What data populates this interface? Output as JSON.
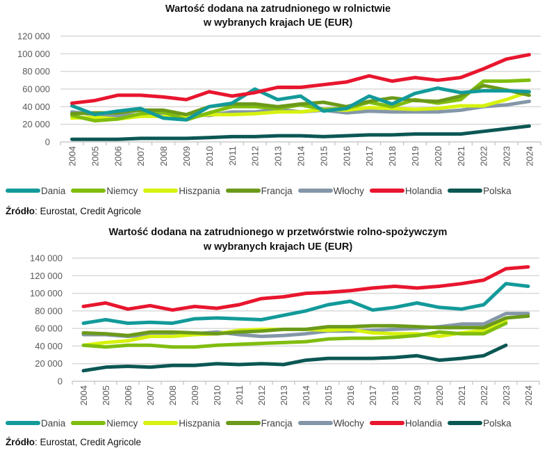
{
  "colors": {
    "Dania": "#139a9a",
    "Niemcy": "#80bd0f",
    "Hiszpania": "#d7f20e",
    "Francja": "#6b9a1a",
    "Włochy": "#8497a8",
    "Holandia": "#e8162e",
    "Polska": "#0b5754",
    "grid": "#d9d9d9",
    "axis": "#bfbfbf"
  },
  "legend_order": [
    "Dania",
    "Niemcy",
    "Hiszpania",
    "Francja",
    "Włochy",
    "Holandia",
    "Polska"
  ],
  "chart_data": [
    {
      "type": "line",
      "title_line1": "Wartość dodana na zatrudnionego w rolnictwie",
      "title_line2": "w wybranych krajach UE (EUR)",
      "xlabel": "",
      "ylabel": "",
      "ylim": [
        0,
        120000
      ],
      "y_ticks": [
        0,
        20000,
        40000,
        60000,
        80000,
        100000,
        120000
      ],
      "y_tick_labels": [
        "0",
        "20 000",
        "40 000",
        "60 000",
        "80 000",
        "100 000",
        "120 000"
      ],
      "grid": true,
      "legend_position": "bottom",
      "categories": [
        "2004",
        "2005",
        "2006",
        "2007",
        "2008",
        "2009",
        "2010",
        "2011",
        "2012",
        "2013",
        "2014",
        "2015",
        "2016",
        "2017",
        "2018",
        "2019",
        "2020",
        "2021",
        "2022",
        "2023",
        "2024"
      ],
      "series": [
        {
          "name": "Dania",
          "values": [
            41000,
            31000,
            35000,
            38000,
            27000,
            25000,
            40000,
            44000,
            60000,
            48000,
            52000,
            35000,
            38000,
            52000,
            43000,
            55000,
            61000,
            56000,
            58000,
            58000,
            57000
          ]
        },
        {
          "name": "Niemcy",
          "values": [
            30000,
            24000,
            26000,
            32000,
            34000,
            25000,
            33000,
            40000,
            40000,
            38000,
            42000,
            37000,
            38000,
            45000,
            40000,
            48000,
            44000,
            48000,
            69000,
            69000,
            70000
          ]
        },
        {
          "name": "Hiszpania",
          "values": [
            27000,
            28000,
            26000,
            29000,
            29000,
            28000,
            31000,
            31000,
            32000,
            34000,
            34000,
            37000,
            36000,
            39000,
            38000,
            37000,
            38000,
            41000,
            41000,
            48000,
            57000
          ]
        },
        {
          "name": "Francja",
          "values": [
            32000,
            33000,
            33000,
            36000,
            36000,
            31000,
            40000,
            43000,
            43000,
            40000,
            43000,
            45000,
            40000,
            46000,
            50000,
            47000,
            46000,
            52000,
            64000,
            59000,
            53000
          ]
        },
        {
          "name": "Włochy",
          "values": [
            34000,
            31000,
            30000,
            31000,
            31000,
            31000,
            30000,
            34000,
            34000,
            37000,
            34000,
            36000,
            33000,
            35000,
            34000,
            34000,
            34000,
            36000,
            40000,
            42000,
            46000
          ]
        },
        {
          "name": "Holandia",
          "values": [
            44000,
            47000,
            53000,
            53000,
            51000,
            48000,
            57000,
            52000,
            56000,
            62000,
            62000,
            65000,
            68000,
            75000,
            69000,
            73000,
            70000,
            73000,
            83000,
            94000,
            99000
          ]
        },
        {
          "name": "Polska",
          "values": [
            3000,
            3000,
            3000,
            4000,
            4000,
            4000,
            5000,
            6000,
            6000,
            7000,
            7000,
            6000,
            7000,
            8000,
            8000,
            9000,
            9000,
            9000,
            12000,
            15000,
            18000
          ]
        }
      ],
      "source_label": "Źródło",
      "source_text": ": Eurostat, Credit Agricole"
    },
    {
      "type": "line",
      "title_line1": "Wartość dodana na zatrudnionego w przetwórstwie rolno-spożywczym",
      "title_line2": "w wybranych krajach UE (EUR)",
      "xlabel": "",
      "ylabel": "",
      "ylim": [
        0,
        140000
      ],
      "y_ticks": [
        0,
        20000,
        40000,
        60000,
        80000,
        100000,
        120000,
        140000
      ],
      "y_tick_labels": [
        "0",
        "20 000",
        "40 000",
        "60 000",
        "80 000",
        "100 000",
        "120 000",
        "140 000"
      ],
      "grid": true,
      "legend_position": "bottom",
      "categories": [
        "2004",
        "2005",
        "2006",
        "2007",
        "2008",
        "2009",
        "2010",
        "2011",
        "2012",
        "2013",
        "2014",
        "2015",
        "2016",
        "2017",
        "2018",
        "2019",
        "2020",
        "2021",
        "2022",
        "2023",
        "2024"
      ],
      "series": [
        {
          "name": "Dania",
          "values": [
            66000,
            70000,
            66000,
            67000,
            66000,
            71000,
            72000,
            71000,
            70000,
            75000,
            80000,
            87000,
            91000,
            81000,
            84000,
            89000,
            84000,
            82000,
            87000,
            111000,
            108000
          ]
        },
        {
          "name": "Niemcy",
          "values": [
            41000,
            39000,
            41000,
            41000,
            39000,
            39000,
            41000,
            42000,
            43000,
            44000,
            45000,
            48000,
            49000,
            49000,
            50000,
            52000,
            56000,
            54000,
            54000,
            66000,
            null
          ]
        },
        {
          "name": "Hiszpania",
          "values": [
            41000,
            44000,
            46000,
            51000,
            51000,
            53000,
            54000,
            58000,
            59000,
            59000,
            59000,
            58000,
            59000,
            55000,
            54000,
            54000,
            51000,
            55000,
            58000,
            69000,
            null
          ]
        },
        {
          "name": "Francja",
          "values": [
            55000,
            54000,
            52000,
            56000,
            56000,
            55000,
            54000,
            56000,
            57000,
            59000,
            59000,
            62000,
            62000,
            63000,
            63000,
            62000,
            61000,
            61000,
            61000,
            72000,
            74000
          ]
        },
        {
          "name": "Włochy",
          "values": [
            53000,
            53000,
            51000,
            53000,
            53000,
            54000,
            56000,
            53000,
            51000,
            52000,
            54000,
            57000,
            57000,
            58000,
            59000,
            60000,
            62000,
            65000,
            65000,
            77000,
            77000
          ]
        },
        {
          "name": "Holandia",
          "values": [
            85000,
            89000,
            82000,
            86000,
            81000,
            85000,
            83000,
            87000,
            94000,
            96000,
            100000,
            101000,
            103000,
            106000,
            108000,
            106000,
            108000,
            111000,
            115000,
            128000,
            130000
          ]
        },
        {
          "name": "Polska",
          "values": [
            12000,
            16000,
            17000,
            16000,
            18000,
            18000,
            20000,
            19000,
            20000,
            19000,
            24000,
            26000,
            26000,
            26000,
            27000,
            29000,
            24000,
            26000,
            29000,
            41000,
            null
          ]
        }
      ],
      "source_label": "Źródło",
      "source_text": ": Eurostat, Credit Agricole"
    }
  ]
}
